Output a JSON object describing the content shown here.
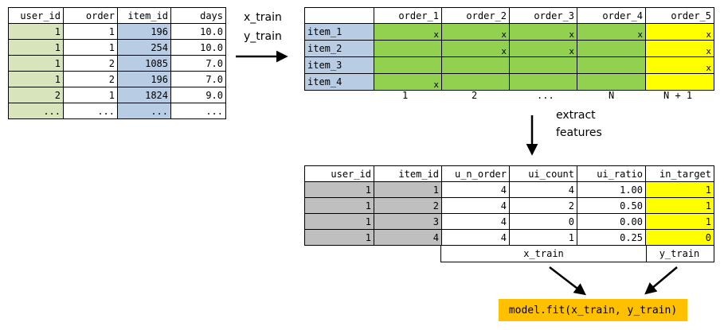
{
  "raw_table": {
    "headers": [
      "user_id",
      "order",
      "item_id",
      "days"
    ],
    "rows": [
      [
        "1",
        "1",
        "196",
        "10.0"
      ],
      [
        "1",
        "1",
        "254",
        "10.0"
      ],
      [
        "1",
        "2",
        "1085",
        "7.0"
      ],
      [
        "1",
        "2",
        "196",
        "7.0"
      ],
      [
        "2",
        "1",
        "1824",
        "9.0"
      ],
      [
        "...",
        "...",
        "...",
        "..."
      ]
    ]
  },
  "labels": {
    "x_train": "x_train",
    "y_train": "y_train",
    "extract_1": "extract",
    "extract_2": "features"
  },
  "matrix": {
    "headers": [
      "",
      "order_1",
      "order_2",
      "order_3",
      "order_4",
      "order_5"
    ],
    "rows": [
      {
        "item": "item_1",
        "cells": [
          "x",
          "x",
          "x",
          "x",
          "x"
        ]
      },
      {
        "item": "item_2",
        "cells": [
          "",
          "x",
          "x",
          "",
          "x"
        ]
      },
      {
        "item": "item_3",
        "cells": [
          "",
          "",
          "",
          "",
          "x"
        ]
      },
      {
        "item": "item_4",
        "cells": [
          "x",
          "",
          "",
          "",
          ""
        ]
      }
    ],
    "footer": [
      "1",
      "2",
      "...",
      "N",
      "N + 1"
    ]
  },
  "features_table": {
    "headers": [
      "user_id",
      "item_id",
      "u_n_order",
      "ui_count",
      "ui_ratio",
      "in_target"
    ],
    "rows": [
      [
        "1",
        "1",
        "4",
        "4",
        "1.00",
        "1"
      ],
      [
        "1",
        "2",
        "4",
        "2",
        "0.50",
        "1"
      ],
      [
        "1",
        "3",
        "4",
        "0",
        "0.00",
        "1"
      ],
      [
        "1",
        "4",
        "4",
        "1",
        "0.25",
        "0"
      ]
    ],
    "x_train_label": "x_train",
    "y_train_label": "y_train"
  },
  "fit_call": "model.fit(x_train, y_train)",
  "colors": {
    "raw_id": "#d8e4bc",
    "item": "#b8cce4",
    "history": "#92d050",
    "target": "#ffff00",
    "key": "#bfbfbf",
    "fit_box": "#ffc000"
  }
}
